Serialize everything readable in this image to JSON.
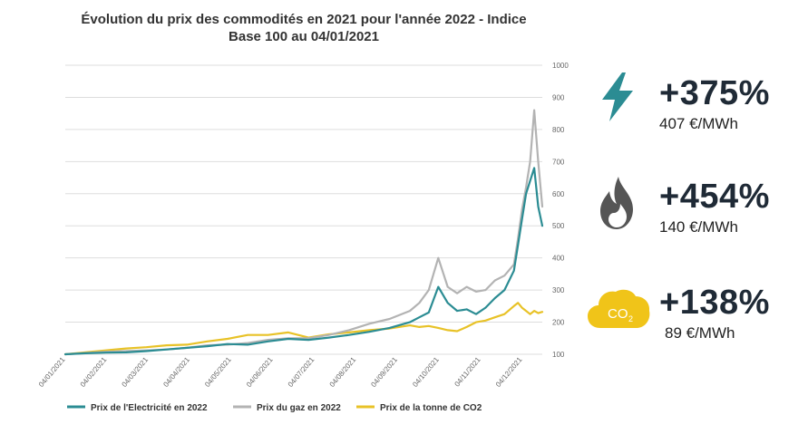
{
  "colors": {
    "electricity": "#2b8c93",
    "gas": "#b3b3b3",
    "co2": "#e8c227",
    "grid": "#dddddd",
    "stat_text": "#1f2a36",
    "elec_icon": "#2b8c93",
    "gas_icon": "#555555",
    "co2_icon": "#f0c419"
  },
  "stats": [
    {
      "pct": "+375%",
      "value": "407 €/MWh",
      "icon": "lightning-icon"
    },
    {
      "pct": "+454%",
      "value": "140 €/MWh",
      "icon": "flame-icon"
    },
    {
      "pct": "+138%",
      "value": "89 €/MWh",
      "icon": "co2-cloud-icon"
    }
  ],
  "co2_badge_text": "CO",
  "co2_badge_sub": "2",
  "chart_data": {
    "type": "line",
    "title": "Évolution du prix des commodités en 2021 pour l'année 2022 - Indice Base 100 au 04/01/2021",
    "xlabel": "",
    "ylabel": "",
    "ylim": [
      100,
      1000
    ],
    "y_ticks": [
      100,
      200,
      300,
      400,
      500,
      600,
      700,
      800,
      900,
      1000
    ],
    "grid": true,
    "legend_position": "bottom",
    "x_tick_labels": [
      "04/01/2021",
      "04/02/2021",
      "04/03/2021",
      "04/04/2021",
      "04/05/2021",
      "04/06/2021",
      "04/07/2021",
      "04/08/2021",
      "04/09/2021",
      "04/10/2021",
      "04/11/2021",
      "04/12/2021"
    ],
    "x": [
      0,
      15,
      30,
      45,
      60,
      75,
      90,
      105,
      120,
      135,
      150,
      165,
      180,
      195,
      210,
      225,
      240,
      255,
      262,
      269,
      276,
      283,
      290,
      297,
      304,
      311,
      318,
      325,
      332,
      335,
      338,
      341,
      344,
      347,
      350,
      353
    ],
    "series": [
      {
        "name": "Prix de l'Electricité en 2022",
        "key": "electricity",
        "values": [
          100,
          103,
          105,
          106,
          110,
          115,
          120,
          125,
          132,
          130,
          140,
          148,
          145,
          152,
          160,
          170,
          182,
          200,
          215,
          230,
          310,
          260,
          235,
          240,
          225,
          245,
          275,
          300,
          360,
          440,
          520,
          600,
          640,
          680,
          560,
          500
        ]
      },
      {
        "name": "Prix du gaz en 2022",
        "key": "gas",
        "values": [
          100,
          104,
          108,
          110,
          112,
          115,
          120,
          128,
          130,
          135,
          145,
          150,
          150,
          160,
          175,
          195,
          210,
          235,
          260,
          300,
          400,
          310,
          290,
          310,
          295,
          300,
          330,
          345,
          380,
          460,
          550,
          620,
          700,
          860,
          700,
          560
        ]
      },
      {
        "name": "Prix de la tonne de CO2",
        "key": "co2",
        "values": [
          100,
          106,
          112,
          118,
          122,
          128,
          130,
          140,
          148,
          160,
          160,
          168,
          152,
          162,
          168,
          175,
          180,
          190,
          185,
          188,
          182,
          175,
          172,
          185,
          200,
          205,
          215,
          225,
          250,
          260,
          245,
          235,
          225,
          235,
          228,
          232
        ]
      }
    ]
  }
}
